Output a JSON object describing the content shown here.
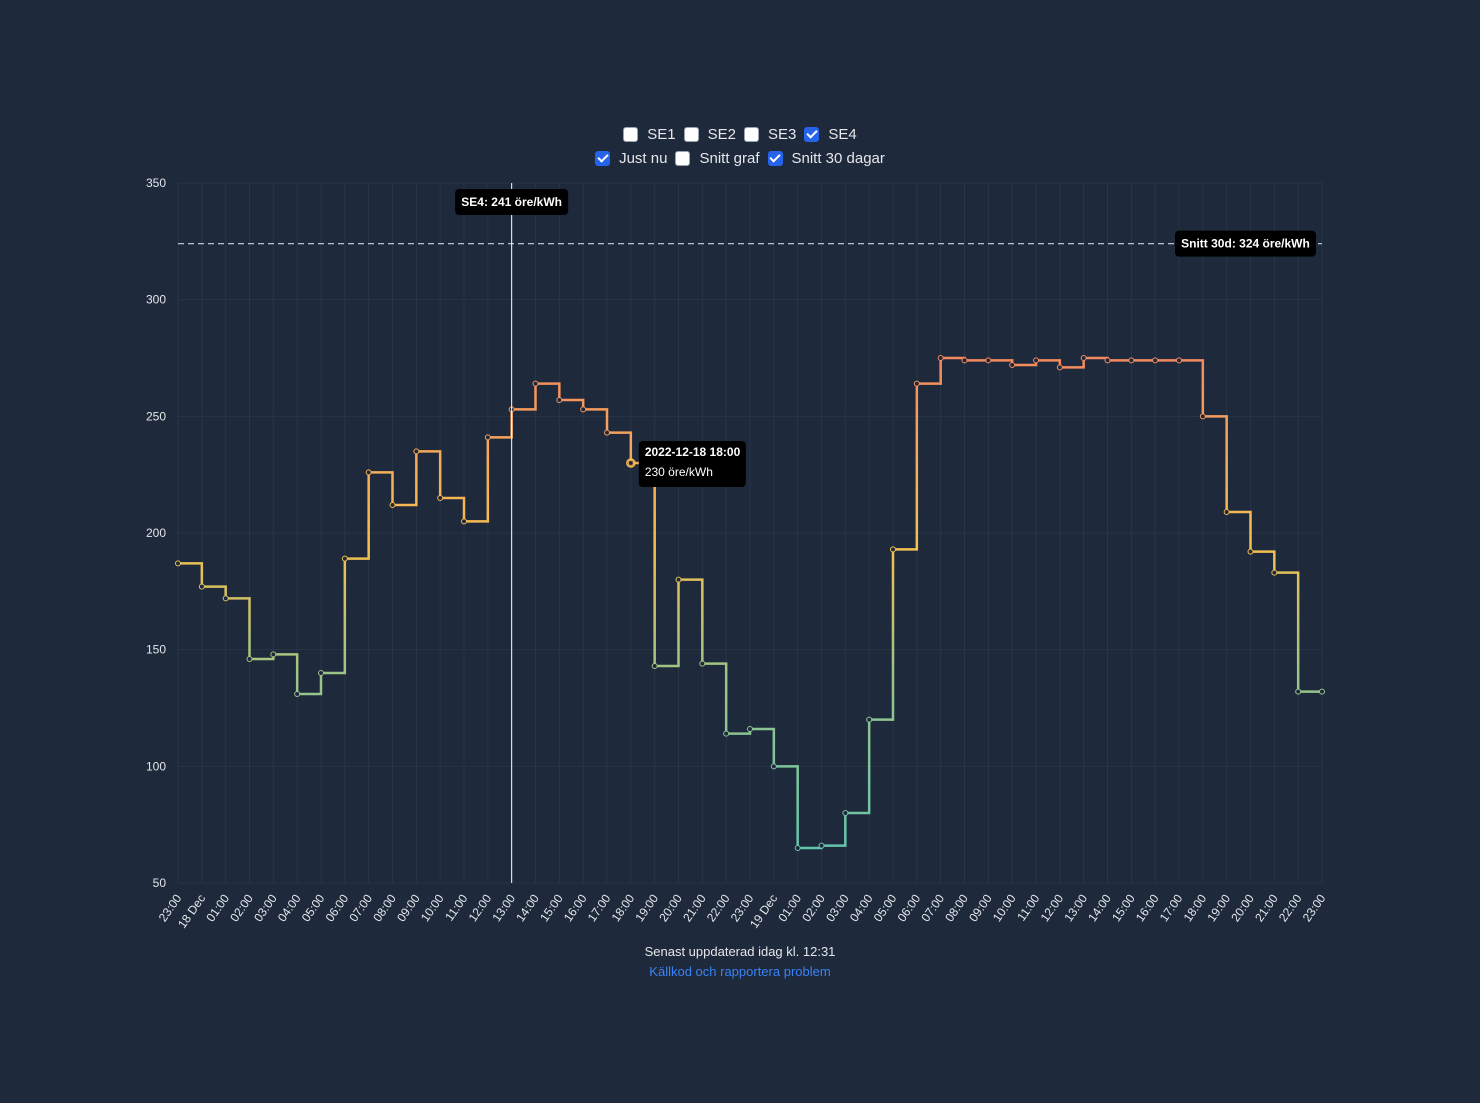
{
  "controls": {
    "row1": [
      {
        "label": "SE1",
        "checked": false
      },
      {
        "label": "SE2",
        "checked": false
      },
      {
        "label": "SE3",
        "checked": false
      },
      {
        "label": "SE4",
        "checked": true
      }
    ],
    "row2": [
      {
        "label": "Just nu",
        "checked": true
      },
      {
        "label": "Snitt graf",
        "checked": false
      },
      {
        "label": "Snitt 30 dagar",
        "checked": true
      }
    ]
  },
  "chart_data": {
    "type": "line",
    "step": true,
    "title": "",
    "xlabel": "",
    "ylabel": "",
    "ylim": [
      50,
      350
    ],
    "yticks": [
      50,
      100,
      150,
      200,
      250,
      300,
      350
    ],
    "grid": true,
    "x": [
      "23:00",
      "18 Dec",
      "01:00",
      "02:00",
      "03:00",
      "04:00",
      "05:00",
      "06:00",
      "07:00",
      "08:00",
      "09:00",
      "10:00",
      "11:00",
      "12:00",
      "13:00",
      "14:00",
      "15:00",
      "16:00",
      "17:00",
      "18:00",
      "19:00",
      "20:00",
      "21:00",
      "22:00",
      "23:00",
      "19 Dec",
      "01:00",
      "02:00",
      "03:00",
      "04:00",
      "05:00",
      "06:00",
      "07:00",
      "08:00",
      "09:00",
      "10:00",
      "11:00",
      "12:00",
      "13:00",
      "14:00",
      "15:00",
      "16:00",
      "17:00",
      "18:00",
      "19:00",
      "20:00",
      "21:00",
      "22:00",
      "23:00"
    ],
    "series": [
      {
        "name": "SE4",
        "values": [
          187,
          177,
          172,
          146,
          148,
          131,
          140,
          189,
          226,
          212,
          235,
          215,
          205,
          241,
          253,
          264,
          257,
          253,
          243,
          230,
          143,
          180,
          144,
          114,
          116,
          100,
          65,
          66,
          80,
          120,
          193,
          264,
          275,
          274,
          274,
          272,
          274,
          271,
          275,
          274,
          274,
          274,
          274,
          250,
          209,
          192,
          183,
          132,
          132
        ]
      }
    ],
    "reference_line": {
      "value": 324,
      "label": "Snitt 30d: 324 öre/kWh"
    },
    "now_marker": {
      "x_index": 14,
      "label": "SE4: 241 öre/kWh"
    },
    "tooltip": {
      "x_index": 19,
      "title": "2022-12-18 18:00",
      "value": "230 öre/kWh"
    },
    "colors": {
      "high": "#f4895f",
      "mid": "#f5c04e",
      "low": "#59c4b4"
    }
  },
  "footer": {
    "updated": "Senast uppdaterad idag kl. 12:31",
    "link": "Källkod och rapportera problem"
  }
}
